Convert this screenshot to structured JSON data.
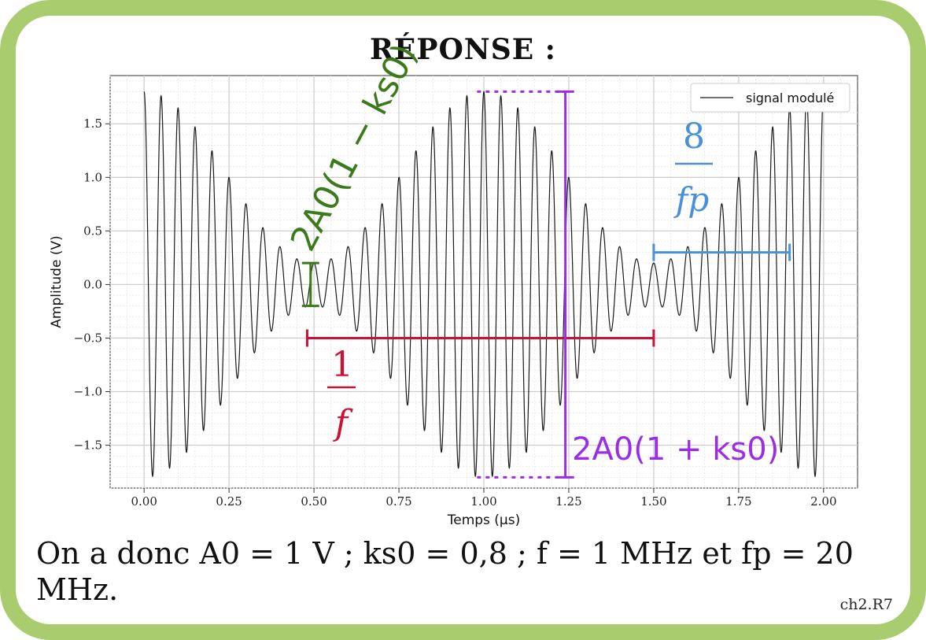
{
  "title": "RÉPONSE :",
  "conclusion": "On a donc A0 = 1 V ; ks0 = 0,8 ; f = 1 MHz et fp = 20 MHz.",
  "reference": "ch2.R7",
  "colors": {
    "frame": "#a9cc6e",
    "signal": "#1a1a1a",
    "green_annotation": "#3b7a1a",
    "red_annotation": "#cc1133",
    "purple_annotation": "#9a2ee6",
    "blue_annotation": "#4a90d9"
  },
  "chart_data": {
    "type": "line",
    "title": "",
    "xlabel": "Temps (μs)",
    "ylabel": "Amplitude (V)",
    "xlim": [
      -0.1,
      2.1
    ],
    "ylim": [
      -1.9,
      1.95
    ],
    "xticks": [
      0.0,
      0.25,
      0.5,
      0.75,
      1.0,
      1.25,
      1.5,
      1.75,
      2.0
    ],
    "xtick_labels": [
      "0.00",
      "0.25",
      "0.50",
      "0.75",
      "1.00",
      "1.25",
      "1.50",
      "1.75",
      "2.00"
    ],
    "yticks": [
      -1.5,
      -1.0,
      -0.5,
      0.0,
      0.5,
      1.0,
      1.5
    ],
    "ytick_labels": [
      "−1.5",
      "−1.0",
      "−0.5",
      "0.0",
      "0.5",
      "1.0",
      "1.5"
    ],
    "grid": true,
    "legend": "top-right",
    "series": [
      {
        "name": "signal modulé",
        "formula": "A0*(1 + ks0*cos(2*pi*f*t))*cos(2*pi*fp*t)",
        "A0": 1,
        "ks0": 0.8,
        "f_MHz": 1,
        "fp_MHz": 20,
        "t_range": [
          0,
          2
        ]
      }
    ],
    "annotations": {
      "green": {
        "label": "2A0(1 − ks0)",
        "x": 0.49,
        "y_range": [
          -0.2,
          0.2
        ]
      },
      "red": {
        "label_num": "1",
        "label_den": "f",
        "x_range": [
          0.48,
          1.5
        ],
        "y": -0.5
      },
      "purple": {
        "label": "2A0(1 + ks0)",
        "x": 1.24,
        "y_range": [
          -1.8,
          1.8
        ],
        "dotted_from_x": 0.98
      },
      "blue": {
        "label_num": "8",
        "label_den": "fp",
        "x_range": [
          1.5,
          1.9
        ],
        "y": 0.3
      }
    }
  }
}
